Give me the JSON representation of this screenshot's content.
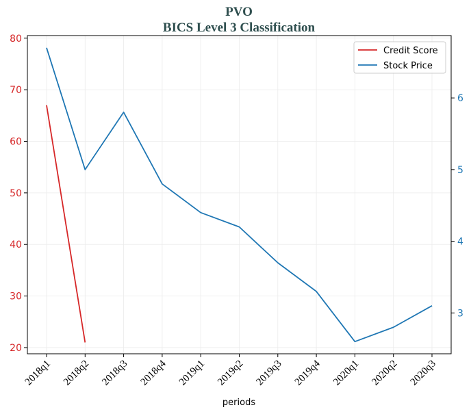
{
  "chart_data": {
    "type": "line",
    "title": "PVO",
    "subtitle": "BICS Level 3 Classification",
    "xlabel": "periods",
    "categories": [
      "2018q1",
      "2018q2",
      "2018q3",
      "2018q4",
      "2019q1",
      "2019q2",
      "2019q3",
      "2019q4",
      "2020q1",
      "2020q2",
      "2020q3"
    ],
    "series": [
      {
        "name": "Credit Score",
        "axis": "left",
        "color": "#d62728",
        "values": [
          67,
          21,
          null,
          null,
          null,
          null,
          null,
          null,
          null,
          null,
          null
        ]
      },
      {
        "name": "Stock Price",
        "axis": "right",
        "color": "#1f77b4",
        "values": [
          6.7,
          5.0,
          5.8,
          4.8,
          4.4,
          4.2,
          3.7,
          3.3,
          2.6,
          2.8,
          3.1
        ]
      }
    ],
    "y_left": {
      "ylim": [
        18.8,
        80.5
      ],
      "ticks": [
        20,
        30,
        40,
        50,
        60,
        70,
        80
      ],
      "color": "#d62728"
    },
    "y_right": {
      "ylim": [
        2.43,
        6.87
      ],
      "ticks": [
        3,
        4,
        5,
        6
      ],
      "color": "#1f77b4"
    },
    "grid": true,
    "legend": "top-right"
  }
}
